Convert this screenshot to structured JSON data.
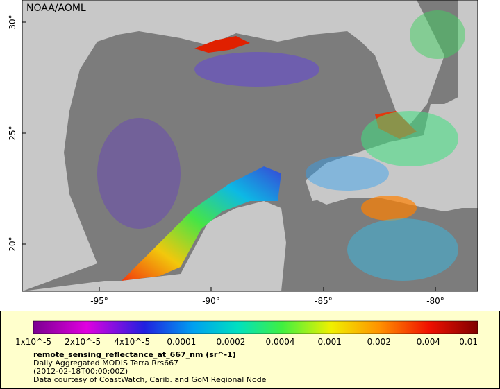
{
  "map": {
    "title": "NOAA/AOML",
    "lat_ticks": [
      "30°",
      "25°",
      "20°"
    ],
    "lon_ticks": [
      "-95°",
      "-90°",
      "-85°",
      "-80°"
    ]
  },
  "legend": {
    "colorbar_labels": [
      "1x10^-5",
      "2x10^-5",
      "4x10^-5",
      "0.0001",
      "0.0002",
      "0.0004",
      "0.001",
      "0.002",
      "0.004",
      "0.01"
    ],
    "variable": "remote_sensing_reflectance_at_667_nm (sr^-1)",
    "description": "Daily Aggregated MODIS Terra Rrs667",
    "time": "(2012-02-18T00:00:00Z)",
    "credit": "Data courtesy of CoastWatch, Carib. and GoM Regional Node"
  }
}
